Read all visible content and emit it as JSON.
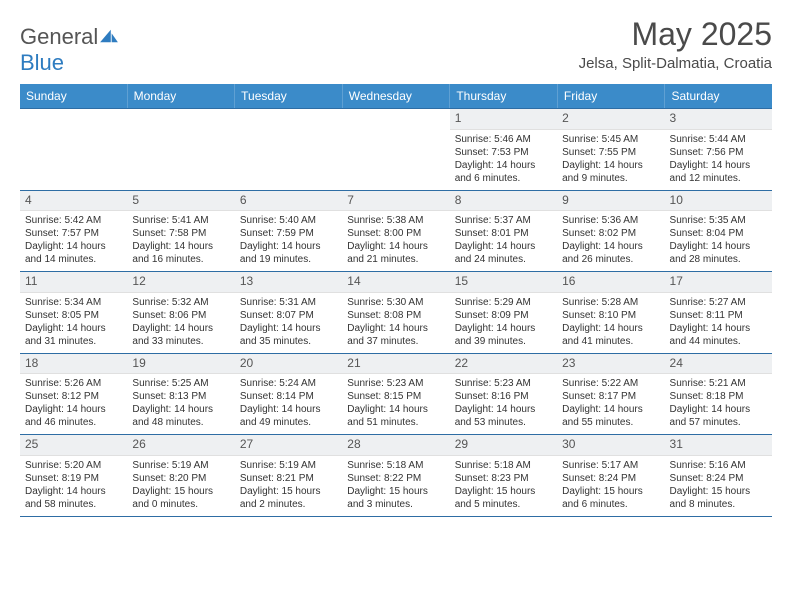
{
  "brand": {
    "part1": "General",
    "part2": "Blue"
  },
  "title": "May 2025",
  "subtitle": "Jelsa, Split-Dalmatia, Croatia",
  "styling": {
    "header_bg": "#3b8bc9",
    "header_text": "#ffffff",
    "daynum_bg": "#eef0f2",
    "week_border": "#2e6da4",
    "body_text": "#333333",
    "page_bg": "#ffffff",
    "title_color": "#4a4a4a",
    "weekday_font_size": 12,
    "daynum_font_size": 12,
    "cell_font_size": 10
  },
  "weekdays": [
    "Sunday",
    "Monday",
    "Tuesday",
    "Wednesday",
    "Thursday",
    "Friday",
    "Saturday"
  ],
  "weeks": [
    [
      {
        "empty": true
      },
      {
        "empty": true
      },
      {
        "empty": true
      },
      {
        "empty": true
      },
      {
        "num": "1",
        "sunrise": "5:46 AM",
        "sunset": "7:53 PM",
        "daylight": "14 hours and 6 minutes."
      },
      {
        "num": "2",
        "sunrise": "5:45 AM",
        "sunset": "7:55 PM",
        "daylight": "14 hours and 9 minutes."
      },
      {
        "num": "3",
        "sunrise": "5:44 AM",
        "sunset": "7:56 PM",
        "daylight": "14 hours and 12 minutes."
      }
    ],
    [
      {
        "num": "4",
        "sunrise": "5:42 AM",
        "sunset": "7:57 PM",
        "daylight": "14 hours and 14 minutes."
      },
      {
        "num": "5",
        "sunrise": "5:41 AM",
        "sunset": "7:58 PM",
        "daylight": "14 hours and 16 minutes."
      },
      {
        "num": "6",
        "sunrise": "5:40 AM",
        "sunset": "7:59 PM",
        "daylight": "14 hours and 19 minutes."
      },
      {
        "num": "7",
        "sunrise": "5:38 AM",
        "sunset": "8:00 PM",
        "daylight": "14 hours and 21 minutes."
      },
      {
        "num": "8",
        "sunrise": "5:37 AM",
        "sunset": "8:01 PM",
        "daylight": "14 hours and 24 minutes."
      },
      {
        "num": "9",
        "sunrise": "5:36 AM",
        "sunset": "8:02 PM",
        "daylight": "14 hours and 26 minutes."
      },
      {
        "num": "10",
        "sunrise": "5:35 AM",
        "sunset": "8:04 PM",
        "daylight": "14 hours and 28 minutes."
      }
    ],
    [
      {
        "num": "11",
        "sunrise": "5:34 AM",
        "sunset": "8:05 PM",
        "daylight": "14 hours and 31 minutes."
      },
      {
        "num": "12",
        "sunrise": "5:32 AM",
        "sunset": "8:06 PM",
        "daylight": "14 hours and 33 minutes."
      },
      {
        "num": "13",
        "sunrise": "5:31 AM",
        "sunset": "8:07 PM",
        "daylight": "14 hours and 35 minutes."
      },
      {
        "num": "14",
        "sunrise": "5:30 AM",
        "sunset": "8:08 PM",
        "daylight": "14 hours and 37 minutes."
      },
      {
        "num": "15",
        "sunrise": "5:29 AM",
        "sunset": "8:09 PM",
        "daylight": "14 hours and 39 minutes."
      },
      {
        "num": "16",
        "sunrise": "5:28 AM",
        "sunset": "8:10 PM",
        "daylight": "14 hours and 41 minutes."
      },
      {
        "num": "17",
        "sunrise": "5:27 AM",
        "sunset": "8:11 PM",
        "daylight": "14 hours and 44 minutes."
      }
    ],
    [
      {
        "num": "18",
        "sunrise": "5:26 AM",
        "sunset": "8:12 PM",
        "daylight": "14 hours and 46 minutes."
      },
      {
        "num": "19",
        "sunrise": "5:25 AM",
        "sunset": "8:13 PM",
        "daylight": "14 hours and 48 minutes."
      },
      {
        "num": "20",
        "sunrise": "5:24 AM",
        "sunset": "8:14 PM",
        "daylight": "14 hours and 49 minutes."
      },
      {
        "num": "21",
        "sunrise": "5:23 AM",
        "sunset": "8:15 PM",
        "daylight": "14 hours and 51 minutes."
      },
      {
        "num": "22",
        "sunrise": "5:23 AM",
        "sunset": "8:16 PM",
        "daylight": "14 hours and 53 minutes."
      },
      {
        "num": "23",
        "sunrise": "5:22 AM",
        "sunset": "8:17 PM",
        "daylight": "14 hours and 55 minutes."
      },
      {
        "num": "24",
        "sunrise": "5:21 AM",
        "sunset": "8:18 PM",
        "daylight": "14 hours and 57 minutes."
      }
    ],
    [
      {
        "num": "25",
        "sunrise": "5:20 AM",
        "sunset": "8:19 PM",
        "daylight": "14 hours and 58 minutes."
      },
      {
        "num": "26",
        "sunrise": "5:19 AM",
        "sunset": "8:20 PM",
        "daylight": "15 hours and 0 minutes."
      },
      {
        "num": "27",
        "sunrise": "5:19 AM",
        "sunset": "8:21 PM",
        "daylight": "15 hours and 2 minutes."
      },
      {
        "num": "28",
        "sunrise": "5:18 AM",
        "sunset": "8:22 PM",
        "daylight": "15 hours and 3 minutes."
      },
      {
        "num": "29",
        "sunrise": "5:18 AM",
        "sunset": "8:23 PM",
        "daylight": "15 hours and 5 minutes."
      },
      {
        "num": "30",
        "sunrise": "5:17 AM",
        "sunset": "8:24 PM",
        "daylight": "15 hours and 6 minutes."
      },
      {
        "num": "31",
        "sunrise": "5:16 AM",
        "sunset": "8:24 PM",
        "daylight": "15 hours and 8 minutes."
      }
    ]
  ],
  "labels": {
    "sunrise": "Sunrise: ",
    "sunset": "Sunset: ",
    "daylight": "Daylight: "
  }
}
